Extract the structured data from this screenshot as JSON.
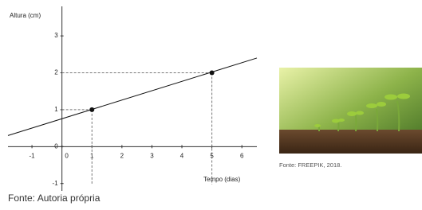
{
  "chart_data": {
    "type": "line",
    "x_label": "Tempo (dias)",
    "y_label": "Altura (cm)",
    "xlim": [
      -1.8,
      6.5
    ],
    "ylim": [
      -1.2,
      3.8
    ],
    "xticks": [
      -1,
      0,
      1,
      2,
      3,
      4,
      5,
      6
    ],
    "yticks": [
      -1,
      0,
      1,
      2,
      3
    ],
    "series": [
      {
        "color": "#111111",
        "x": [
          -1.8,
          6.5
        ],
        "values": [
          0.3,
          2.4
        ],
        "markers": false
      },
      {
        "color": "#111111",
        "x": [
          1,
          5
        ],
        "values": [
          1,
          2
        ],
        "markers": true,
        "line": false,
        "guides": true
      }
    ]
  },
  "captions": {
    "image": "Fonte: FREEPIK, 2018.",
    "chart": "Fonte: Autoria própria"
  }
}
